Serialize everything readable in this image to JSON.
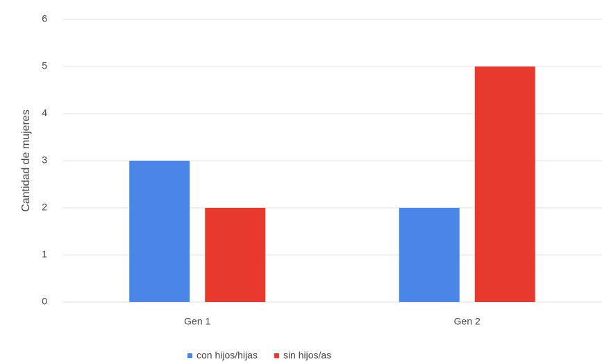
{
  "chart_data": {
    "type": "bar",
    "categories": [
      "Gen 1",
      "Gen 2"
    ],
    "series": [
      {
        "name": "con hijos/hijas",
        "color": "#4a86e8",
        "values": [
          3,
          2
        ]
      },
      {
        "name": "sin hijos/as",
        "color": "#e8392f",
        "values": [
          2,
          5
        ]
      }
    ],
    "y_label": "Cantidad de mujeres",
    "ylim": [
      0,
      6
    ],
    "yticks": [
      0,
      1,
      2,
      3,
      4,
      5,
      6
    ],
    "grid": true,
    "legend": "bottom"
  }
}
